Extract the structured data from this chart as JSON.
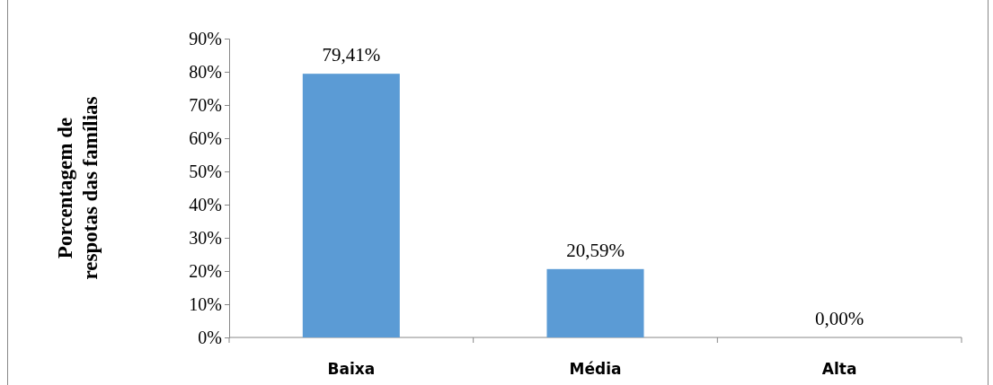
{
  "chart_data": {
    "type": "bar",
    "ylabel": "Porcentagem de\nrespotas das famílias",
    "categories": [
      "Baixa",
      "Média",
      "Alta"
    ],
    "values": [
      79.41,
      20.59,
      0
    ],
    "value_labels": [
      "79,41%",
      "20,59%",
      "0,00%"
    ],
    "color": "#5b9bd5",
    "ylim": [
      0,
      90
    ],
    "yticks": [
      {
        "value": 0,
        "label": "0%"
      },
      {
        "value": 10,
        "label": "10%"
      },
      {
        "value": 20,
        "label": "20%"
      },
      {
        "value": 30,
        "label": "30%"
      },
      {
        "value": 40,
        "label": "40%"
      },
      {
        "value": 50,
        "label": "50%"
      },
      {
        "value": 60,
        "label": "60%"
      },
      {
        "value": 70,
        "label": "70%"
      },
      {
        "value": 80,
        "label": "80%"
      },
      {
        "value": 90,
        "label": "90%"
      }
    ],
    "grid": false
  }
}
